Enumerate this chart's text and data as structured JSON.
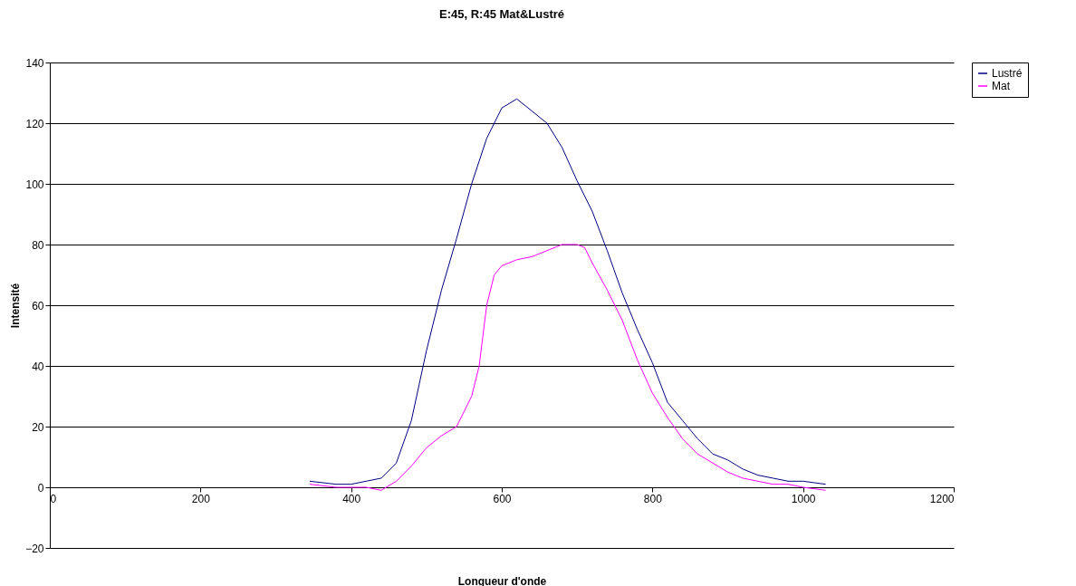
{
  "chart_data": {
    "type": "line",
    "title": "E:45, R:45 Mat&Lustré",
    "xlabel": "Longueur d'onde",
    "ylabel": "Intensité",
    "xlim": [
      0,
      1200
    ],
    "xticks": [
      0,
      200,
      400,
      600,
      800,
      1000,
      1200
    ],
    "ylim": [
      -20,
      140
    ],
    "yticks": [
      -20,
      0,
      20,
      40,
      60,
      80,
      100,
      120,
      140
    ],
    "grid": "y",
    "legend": "right",
    "marker": "none",
    "line_style": "solid",
    "series": [
      {
        "name": "Lustré",
        "color": "#000080",
        "x": [
          345,
          380,
          400,
          420,
          440,
          460,
          480,
          500,
          520,
          540,
          560,
          580,
          600,
          620,
          640,
          660,
          680,
          700,
          720,
          740,
          760,
          780,
          800,
          820,
          840,
          860,
          880,
          900,
          920,
          940,
          960,
          980,
          1000,
          1030
        ],
        "values": [
          2,
          1,
          1,
          2,
          3,
          8,
          22,
          45,
          65,
          82,
          100,
          115,
          125,
          128,
          124,
          120,
          112,
          101,
          91,
          78,
          64,
          52,
          41,
          28,
          22,
          16,
          11,
          9,
          6,
          4,
          3,
          2,
          2,
          1
        ]
      },
      {
        "name": "Mat",
        "color": "#ff00ff",
        "x": [
          345,
          380,
          400,
          420,
          440,
          460,
          480,
          500,
          520,
          540,
          560,
          570,
          580,
          590,
          600,
          620,
          640,
          660,
          680,
          700,
          710,
          720,
          740,
          760,
          780,
          800,
          820,
          840,
          860,
          880,
          900,
          920,
          940,
          960,
          980,
          1000,
          1030
        ],
        "values": [
          1,
          0,
          0,
          0,
          -1,
          2,
          7,
          13,
          17,
          20,
          30,
          40,
          60,
          70,
          73,
          75,
          76,
          78,
          80,
          80,
          79,
          74,
          65,
          55,
          42,
          31,
          23,
          16,
          11,
          8,
          5,
          3,
          2,
          1,
          1,
          0,
          -1
        ]
      }
    ]
  }
}
